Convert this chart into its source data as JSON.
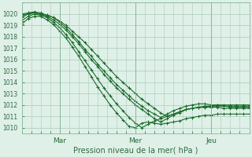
{
  "title": "",
  "xlabel": "Pression niveau de la mer( hPa )",
  "ylim": [
    1009.5,
    1021.0
  ],
  "xlim": [
    0,
    72
  ],
  "yticks": [
    1010,
    1011,
    1012,
    1013,
    1014,
    1015,
    1016,
    1017,
    1018,
    1019,
    1020
  ],
  "xtick_positions": [
    12,
    36,
    60
  ],
  "xtick_labels": [
    "Mar",
    "Mer",
    "Jeu"
  ],
  "bg_color": "#dff0e8",
  "grid_color": "#aacab8",
  "line_color": "#1a6b2a",
  "marker": "+",
  "marker_size": 3,
  "line_width": 0.8,
  "series": [
    [
      1020.0,
      1020.1,
      1020.1,
      1020.0,
      1019.9,
      1019.7,
      1019.4,
      1019.0,
      1018.5,
      1018.0,
      1017.5,
      1016.9,
      1016.3,
      1015.7,
      1015.1,
      1014.5,
      1014.0,
      1013.5,
      1013.0,
      1012.5,
      1012.1,
      1011.7,
      1011.3,
      1011.0,
      1011.2,
      1011.4,
      1011.6,
      1011.7,
      1011.8,
      1011.8,
      1011.8,
      1011.8,
      1011.7,
      1011.7,
      1011.7,
      1011.7,
      1011.7
    ],
    [
      1019.7,
      1020.0,
      1020.1,
      1020.0,
      1019.8,
      1019.5,
      1019.1,
      1018.6,
      1018.0,
      1017.4,
      1016.7,
      1016.0,
      1015.4,
      1014.7,
      1014.1,
      1013.5,
      1013.0,
      1012.5,
      1012.0,
      1011.6,
      1011.2,
      1010.8,
      1010.5,
      1010.8,
      1011.1,
      1011.3,
      1011.6,
      1011.7,
      1011.8,
      1011.8,
      1011.9,
      1011.9,
      1011.9,
      1011.8,
      1011.8,
      1011.8,
      1011.8
    ],
    [
      1019.4,
      1019.8,
      1020.0,
      1019.9,
      1019.7,
      1019.3,
      1018.8,
      1018.2,
      1017.5,
      1016.7,
      1015.9,
      1015.1,
      1014.3,
      1013.5,
      1012.8,
      1012.1,
      1011.5,
      1010.9,
      1010.4,
      1010.0,
      1010.3,
      1010.6,
      1010.8,
      1011.0,
      1011.2,
      1011.4,
      1011.6,
      1011.7,
      1011.8,
      1011.9,
      1011.9,
      1012.0,
      1011.9,
      1011.9,
      1011.9,
      1011.9,
      1011.9
    ],
    [
      1019.1,
      1019.6,
      1019.8,
      1019.8,
      1019.5,
      1019.1,
      1018.5,
      1017.9,
      1017.1,
      1016.3,
      1015.4,
      1014.5,
      1013.6,
      1012.8,
      1012.0,
      1011.3,
      1010.7,
      1010.1,
      1010.0,
      1010.4,
      1010.5,
      1010.4,
      1010.3,
      1010.4,
      1010.5,
      1010.6,
      1010.8,
      1010.9,
      1011.0,
      1011.1,
      1011.1,
      1011.2,
      1011.2,
      1011.2,
      1011.2,
      1011.2,
      1011.2
    ],
    [
      1019.8,
      1020.1,
      1020.2,
      1020.1,
      1019.9,
      1019.7,
      1019.3,
      1018.8,
      1018.2,
      1017.6,
      1016.9,
      1016.3,
      1015.6,
      1015.0,
      1014.4,
      1013.8,
      1013.3,
      1012.8,
      1012.3,
      1011.9,
      1011.5,
      1011.2,
      1010.9,
      1011.2,
      1011.5,
      1011.7,
      1011.9,
      1012.0,
      1012.1,
      1012.1,
      1012.0,
      1012.0,
      1012.0,
      1012.0,
      1012.0,
      1012.0,
      1012.0
    ]
  ]
}
